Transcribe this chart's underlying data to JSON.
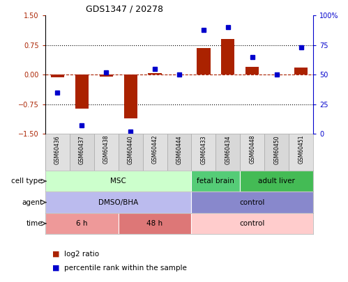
{
  "title": "GDS1347 / 20278",
  "samples": [
    "GSM60436",
    "GSM60437",
    "GSM60438",
    "GSM60440",
    "GSM60442",
    "GSM60444",
    "GSM60433",
    "GSM60434",
    "GSM60448",
    "GSM60450",
    "GSM60451"
  ],
  "log2_ratio": [
    -0.07,
    -0.85,
    -0.05,
    -1.1,
    0.04,
    0.0,
    0.68,
    0.9,
    0.2,
    0.0,
    0.18
  ],
  "percentile_rank": [
    35,
    7,
    52,
    2,
    55,
    50,
    88,
    90,
    65,
    50,
    73
  ],
  "ylim": [
    -1.5,
    1.5
  ],
  "right_ylim": [
    0,
    100
  ],
  "right_yticks": [
    0,
    25,
    50,
    75,
    100
  ],
  "right_yticklabels": [
    "0",
    "25",
    "50",
    "75",
    "100%"
  ],
  "left_yticks": [
    -1.5,
    -0.75,
    0.0,
    0.75,
    1.5
  ],
  "dotted_lines": [
    -0.75,
    0.75
  ],
  "bar_color": "#aa2200",
  "dot_color": "#0000cc",
  "bar_width": 0.55,
  "cell_type_groups": [
    {
      "label": "MSC",
      "start": -0.5,
      "end": 5.5,
      "color": "#ccffcc"
    },
    {
      "label": "fetal brain",
      "start": 5.5,
      "end": 7.5,
      "color": "#55cc77"
    },
    {
      "label": "adult liver",
      "start": 7.5,
      "end": 10.5,
      "color": "#44bb55"
    }
  ],
  "agent_groups": [
    {
      "label": "DMSO/BHA",
      "start": -0.5,
      "end": 5.5,
      "color": "#bbbbee"
    },
    {
      "label": "control",
      "start": 5.5,
      "end": 10.5,
      "color": "#8888cc"
    }
  ],
  "time_groups": [
    {
      "label": "6 h",
      "start": -0.5,
      "end": 2.5,
      "color": "#ee9999"
    },
    {
      "label": "48 h",
      "start": 2.5,
      "end": 5.5,
      "color": "#dd7777"
    },
    {
      "label": "control",
      "start": 5.5,
      "end": 10.5,
      "color": "#ffcccc"
    }
  ],
  "row_labels": [
    "cell type",
    "agent",
    "time"
  ],
  "legend_labels": [
    "log2 ratio",
    "percentile rank within the sample"
  ],
  "n_samples": 11,
  "xlim": [
    -0.5,
    10.5
  ]
}
